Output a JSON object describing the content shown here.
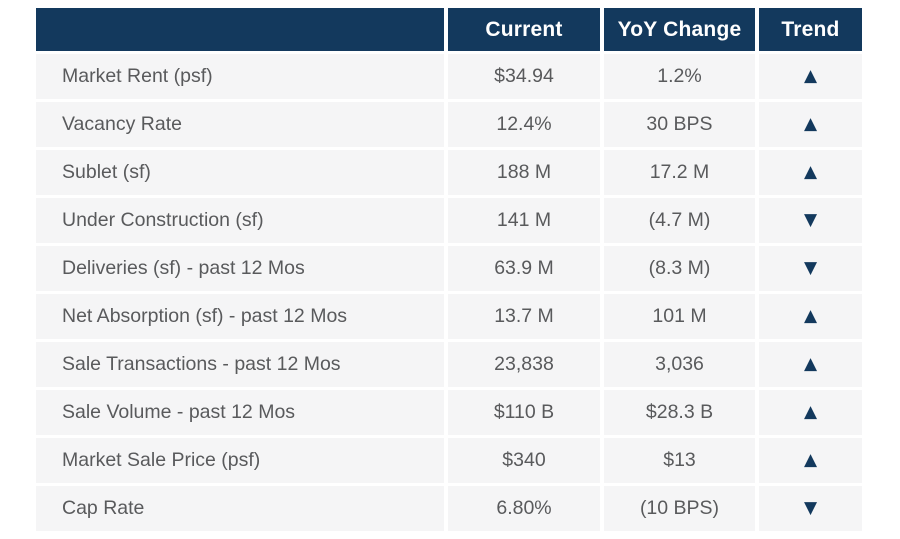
{
  "colors": {
    "header_bg": "#13395d",
    "header_text": "#ffffff",
    "row_bg": "#f5f5f6",
    "label_text": "#595a5c",
    "value_text": "#595a5c",
    "trend_icon": "#13395d",
    "page_bg": "#ffffff"
  },
  "icons": {
    "up": "▲",
    "down": "▼"
  },
  "chart_data": {
    "type": "table",
    "title": "",
    "columns": [
      "",
      "Current",
      "YoY Change",
      "Trend"
    ],
    "rows": [
      {
        "label": "Market Rent (psf)",
        "current": "$34.94",
        "yoy": "1.2%",
        "trend": "up"
      },
      {
        "label": "Vacancy Rate",
        "current": "12.4%",
        "yoy": "30 BPS",
        "trend": "up"
      },
      {
        "label": "Sublet (sf)",
        "current": "188 M",
        "yoy": "17.2 M",
        "trend": "up"
      },
      {
        "label": "Under Construction (sf)",
        "current": "141 M",
        "yoy": "(4.7 M)",
        "trend": "down"
      },
      {
        "label": "Deliveries (sf) - past 12 Mos",
        "current": "63.9 M",
        "yoy": "(8.3 M)",
        "trend": "down"
      },
      {
        "label": "Net Absorption (sf) - past 12 Mos",
        "current": "13.7 M",
        "yoy": "101 M",
        "trend": "up"
      },
      {
        "label": "Sale Transactions - past 12 Mos",
        "current": "23,838",
        "yoy": "3,036",
        "trend": "up"
      },
      {
        "label": "Sale Volume - past 12 Mos",
        "current": "$110 B",
        "yoy": "$28.3 B",
        "trend": "up"
      },
      {
        "label": "Market Sale Price (psf)",
        "current": "$340",
        "yoy": "$13",
        "trend": "up"
      },
      {
        "label": "Cap Rate",
        "current": "6.80%",
        "yoy": "(10 BPS)",
        "trend": "down"
      }
    ]
  }
}
